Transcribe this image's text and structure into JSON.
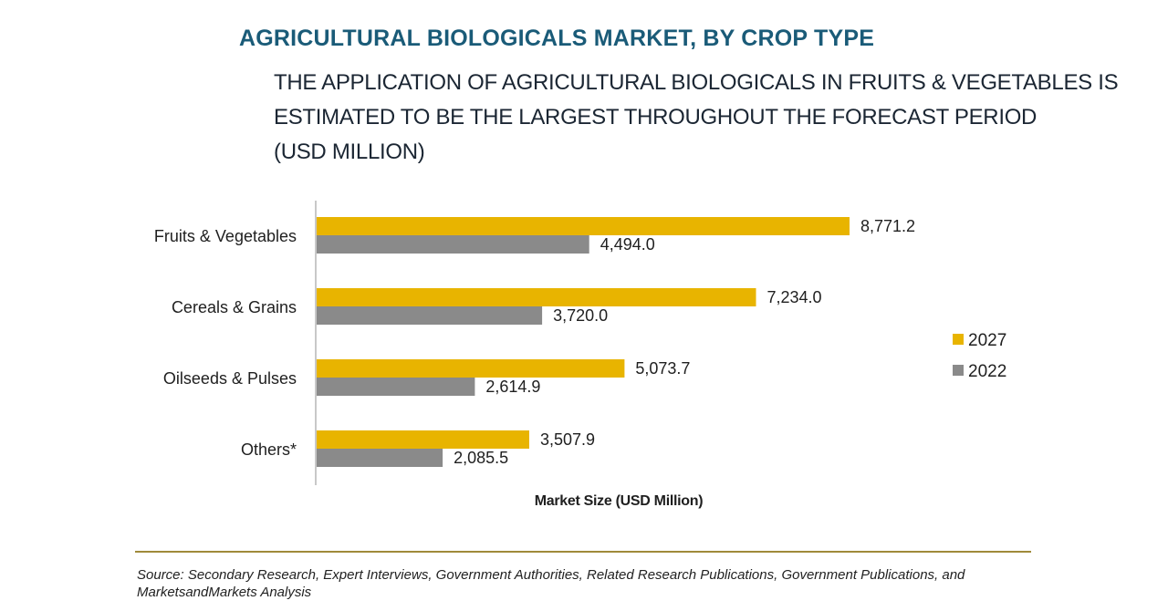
{
  "colors": {
    "title": "#1a5b78",
    "series_2027": "#e8b400",
    "series_2022": "#8a8a8a",
    "axis": "#c8c8c8",
    "rule": "#a08a3a"
  },
  "header": {
    "title": "AGRICULTURAL BIOLOGICALS MARKET, BY CROP TYPE",
    "subtitle_lines": [
      "THE APPLICATION OF AGRICULTURAL BIOLOGICALS IN FRUITS & VEGETABLES IS",
      "ESTIMATED TO BE THE LARGEST THROUGHOUT THE FORECAST PERIOD",
      "(USD MILLION)"
    ]
  },
  "chart_data": {
    "type": "bar",
    "orientation": "horizontal",
    "title": "AGRICULTURAL BIOLOGICALS MARKET, BY CROP TYPE",
    "xlabel": "Market Size (USD Million)",
    "ylabel": "",
    "xlim": [
      0,
      10000
    ],
    "grid": false,
    "legend_position": "right",
    "categories": [
      "Fruits & Vegetables",
      "Cereals & Grains",
      "Oilseeds & Pulses",
      "Others*"
    ],
    "series": [
      {
        "name": "2027",
        "values": [
          8771.2,
          7234.0,
          5073.7,
          3507.9
        ],
        "labels": [
          "8,771.2",
          "7,234.0",
          "5,073.7",
          "3,507.9"
        ]
      },
      {
        "name": "2022",
        "values": [
          4494.0,
          3720.0,
          2614.9,
          2085.5
        ],
        "labels": [
          "4,494.0",
          "3,720.0",
          "2,614.9",
          "2,085.5"
        ]
      }
    ]
  },
  "footer": {
    "source": "Source: Secondary Research, Expert Interviews, Government Authorities, Related Research Publications, Government Publications, and MarketsandMarkets Analysis"
  }
}
